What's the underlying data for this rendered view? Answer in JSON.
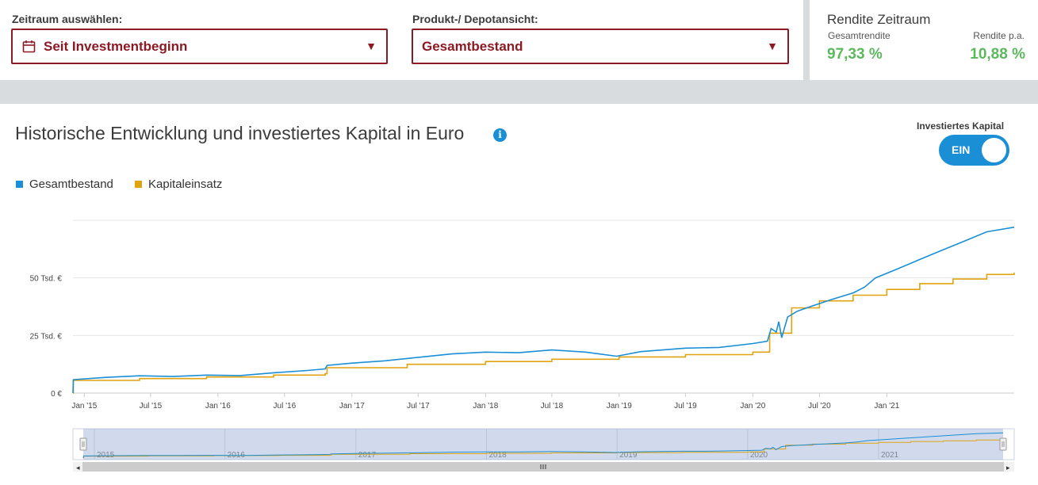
{
  "filters": {
    "zeitraum_label": "Zeitraum auswählen:",
    "zeitraum_value": "Seit Investmentbeginn",
    "produkt_label": "Produkt-/ Depotansicht:",
    "produkt_value": "Gesamtbestand"
  },
  "rendite": {
    "title": "Rendite Zeitraum",
    "gesamt_label": "Gesamtrendite",
    "gesamt_value": "97,33 %",
    "pa_label": "Rendite p.a.",
    "pa_value": "10,88 %"
  },
  "chart": {
    "title": "Historische Entwicklung und investiertes Kapital in Euro",
    "toggle_label": "Investiertes Kapital",
    "toggle_state": "EIN"
  },
  "colors": {
    "accent_red": "#8b1a24",
    "series_gesamt": "#1a8fd6",
    "series_kapital": "#e0a30e",
    "positive": "#5cb85c"
  },
  "chart_data": {
    "type": "line",
    "title": "Historische Entwicklung und investiertes Kapital in Euro",
    "legend_position": "top-left",
    "grid": true,
    "y_ticks": [
      {
        "value": 0,
        "label": "0 €"
      },
      {
        "value": 25000,
        "label": "25 Tsd. €"
      },
      {
        "value": 50000,
        "label": "50 Tsd. €"
      },
      {
        "value": 75000,
        "label": ""
      }
    ],
    "ylim": [
      0,
      75000
    ],
    "xlim": [
      "2014-12-01",
      "2021-12-15"
    ],
    "x_ticks": [
      {
        "date": "2015-01-01",
        "label": "Jan '15"
      },
      {
        "date": "2015-07-01",
        "label": "Jul '15"
      },
      {
        "date": "2016-01-01",
        "label": "Jan '16"
      },
      {
        "date": "2016-07-01",
        "label": "Jul '16"
      },
      {
        "date": "2017-01-01",
        "label": "Jan '17"
      },
      {
        "date": "2017-07-01",
        "label": "Jul '17"
      },
      {
        "date": "2018-01-01",
        "label": "Jan '18"
      },
      {
        "date": "2018-07-01",
        "label": "Jul '18"
      },
      {
        "date": "2019-01-01",
        "label": "Jan '19"
      },
      {
        "date": "2019-07-01",
        "label": "Jul '19"
      },
      {
        "date": "2020-01-01",
        "label": "Jan '20"
      },
      {
        "date": "2020-07-01",
        "label": "Jul '20"
      },
      {
        "date": "2021-01-01",
        "label": "Jan '21"
      }
    ],
    "navigator_years": [
      "2015",
      "2016",
      "2017",
      "2018",
      "2019",
      "2020",
      "2021"
    ],
    "series": [
      {
        "name": "Gesamtbestand",
        "color": "#1a8fd6",
        "points": [
          [
            "2014-12-01",
            0
          ],
          [
            "2014-12-02",
            5800
          ],
          [
            "2015-03-01",
            6800
          ],
          [
            "2015-06-01",
            7500
          ],
          [
            "2015-09-01",
            7200
          ],
          [
            "2015-12-01",
            7800
          ],
          [
            "2016-03-01",
            7600
          ],
          [
            "2016-06-01",
            8800
          ],
          [
            "2016-09-01",
            9800
          ],
          [
            "2016-10-20",
            10500
          ],
          [
            "2016-10-25",
            12000
          ],
          [
            "2017-01-01",
            13000
          ],
          [
            "2017-04-01",
            14000
          ],
          [
            "2017-07-01",
            15500
          ],
          [
            "2017-10-01",
            17000
          ],
          [
            "2018-01-01",
            17800
          ],
          [
            "2018-04-01",
            17500
          ],
          [
            "2018-07-01",
            18700
          ],
          [
            "2018-10-01",
            17800
          ],
          [
            "2018-12-25",
            16000
          ],
          [
            "2019-03-01",
            18000
          ],
          [
            "2019-07-01",
            19500
          ],
          [
            "2019-10-01",
            19800
          ],
          [
            "2020-01-01",
            21500
          ],
          [
            "2020-02-10",
            22500
          ],
          [
            "2020-02-20",
            28000
          ],
          [
            "2020-03-05",
            26500
          ],
          [
            "2020-03-12",
            31000
          ],
          [
            "2020-03-20",
            24000
          ],
          [
            "2020-04-05",
            33000
          ],
          [
            "2020-05-01",
            35500
          ],
          [
            "2020-06-15",
            38000
          ],
          [
            "2020-08-01",
            40500
          ],
          [
            "2020-10-01",
            43500
          ],
          [
            "2020-11-01",
            46000
          ],
          [
            "2020-12-01",
            50000
          ],
          [
            "2021-02-01",
            54000
          ],
          [
            "2021-04-01",
            58000
          ],
          [
            "2021-06-01",
            62000
          ],
          [
            "2021-08-01",
            66000
          ],
          [
            "2021-10-01",
            70000
          ],
          [
            "2021-12-15",
            72000
          ]
        ]
      },
      {
        "name": "Kapitaleinsatz",
        "color": "#e0a30e",
        "points": [
          [
            "2014-12-01",
            0
          ],
          [
            "2014-12-02",
            5500
          ],
          [
            "2015-06-01",
            6300
          ],
          [
            "2015-12-01",
            7000
          ],
          [
            "2016-06-01",
            7800
          ],
          [
            "2016-10-20",
            8400
          ],
          [
            "2016-10-25",
            11000
          ],
          [
            "2017-06-01",
            12500
          ],
          [
            "2018-01-01",
            13700
          ],
          [
            "2018-07-01",
            14700
          ],
          [
            "2019-01-01",
            15700
          ],
          [
            "2019-07-01",
            16700
          ],
          [
            "2020-01-01",
            17800
          ],
          [
            "2020-02-15",
            18000
          ],
          [
            "2020-02-16",
            26000
          ],
          [
            "2020-04-15",
            26000
          ],
          [
            "2020-04-16",
            37000
          ],
          [
            "2020-07-01",
            40000
          ],
          [
            "2020-10-01",
            42500
          ],
          [
            "2021-01-01",
            45000
          ],
          [
            "2021-04-01",
            47500
          ],
          [
            "2021-07-01",
            49500
          ],
          [
            "2021-10-01",
            51500
          ],
          [
            "2021-12-15",
            52300
          ]
        ]
      }
    ]
  }
}
